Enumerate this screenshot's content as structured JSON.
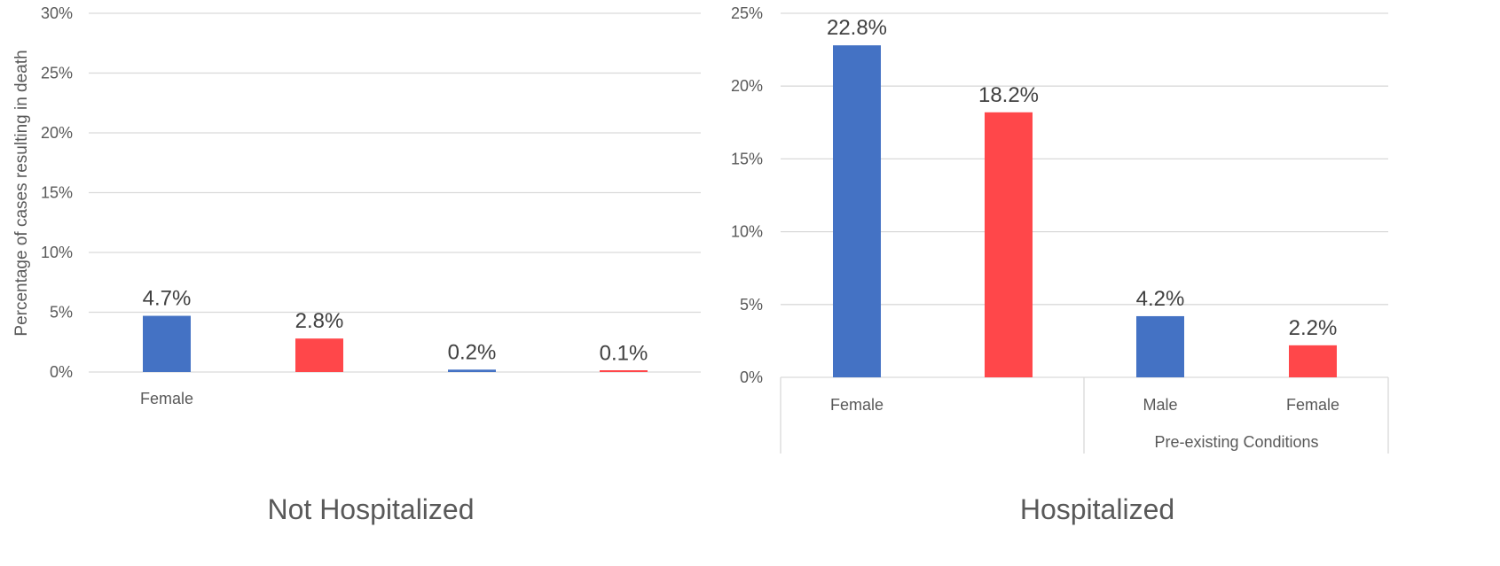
{
  "chart_data": [
    {
      "type": "bar",
      "title": "Not Hospitalized",
      "ylabel": "Percentage of cases resulting in death",
      "ylim": [
        0,
        30
      ],
      "yticks": [
        "0%",
        "5%",
        "10%",
        "15%",
        "20%",
        "25%",
        "30%"
      ],
      "categories": [
        "Female",
        "",
        "",
        ""
      ],
      "values": [
        4.7,
        2.8,
        0.2,
        0.1
      ],
      "value_labels": [
        "4.7%",
        "2.8%",
        "0.2%",
        "0.1%"
      ],
      "bar_colors": [
        "#4472C4",
        "#FF474A",
        "#4472C4",
        "#FF474A"
      ],
      "grid": true
    },
    {
      "type": "bar",
      "title": "Hospitalized",
      "ylim": [
        0,
        25
      ],
      "yticks": [
        "0%",
        "5%",
        "10%",
        "15%",
        "20%",
        "25%"
      ],
      "categories": [
        "Female",
        "",
        "Male",
        "Female"
      ],
      "group_labels": [
        "",
        "Pre-existing Conditions"
      ],
      "values": [
        22.8,
        18.2,
        4.2,
        2.2
      ],
      "value_labels": [
        "22.8%",
        "18.2%",
        "4.2%",
        "2.2%"
      ],
      "bar_colors": [
        "#4472C4",
        "#FF474A",
        "#4472C4",
        "#FF474A"
      ],
      "grid": true
    }
  ]
}
